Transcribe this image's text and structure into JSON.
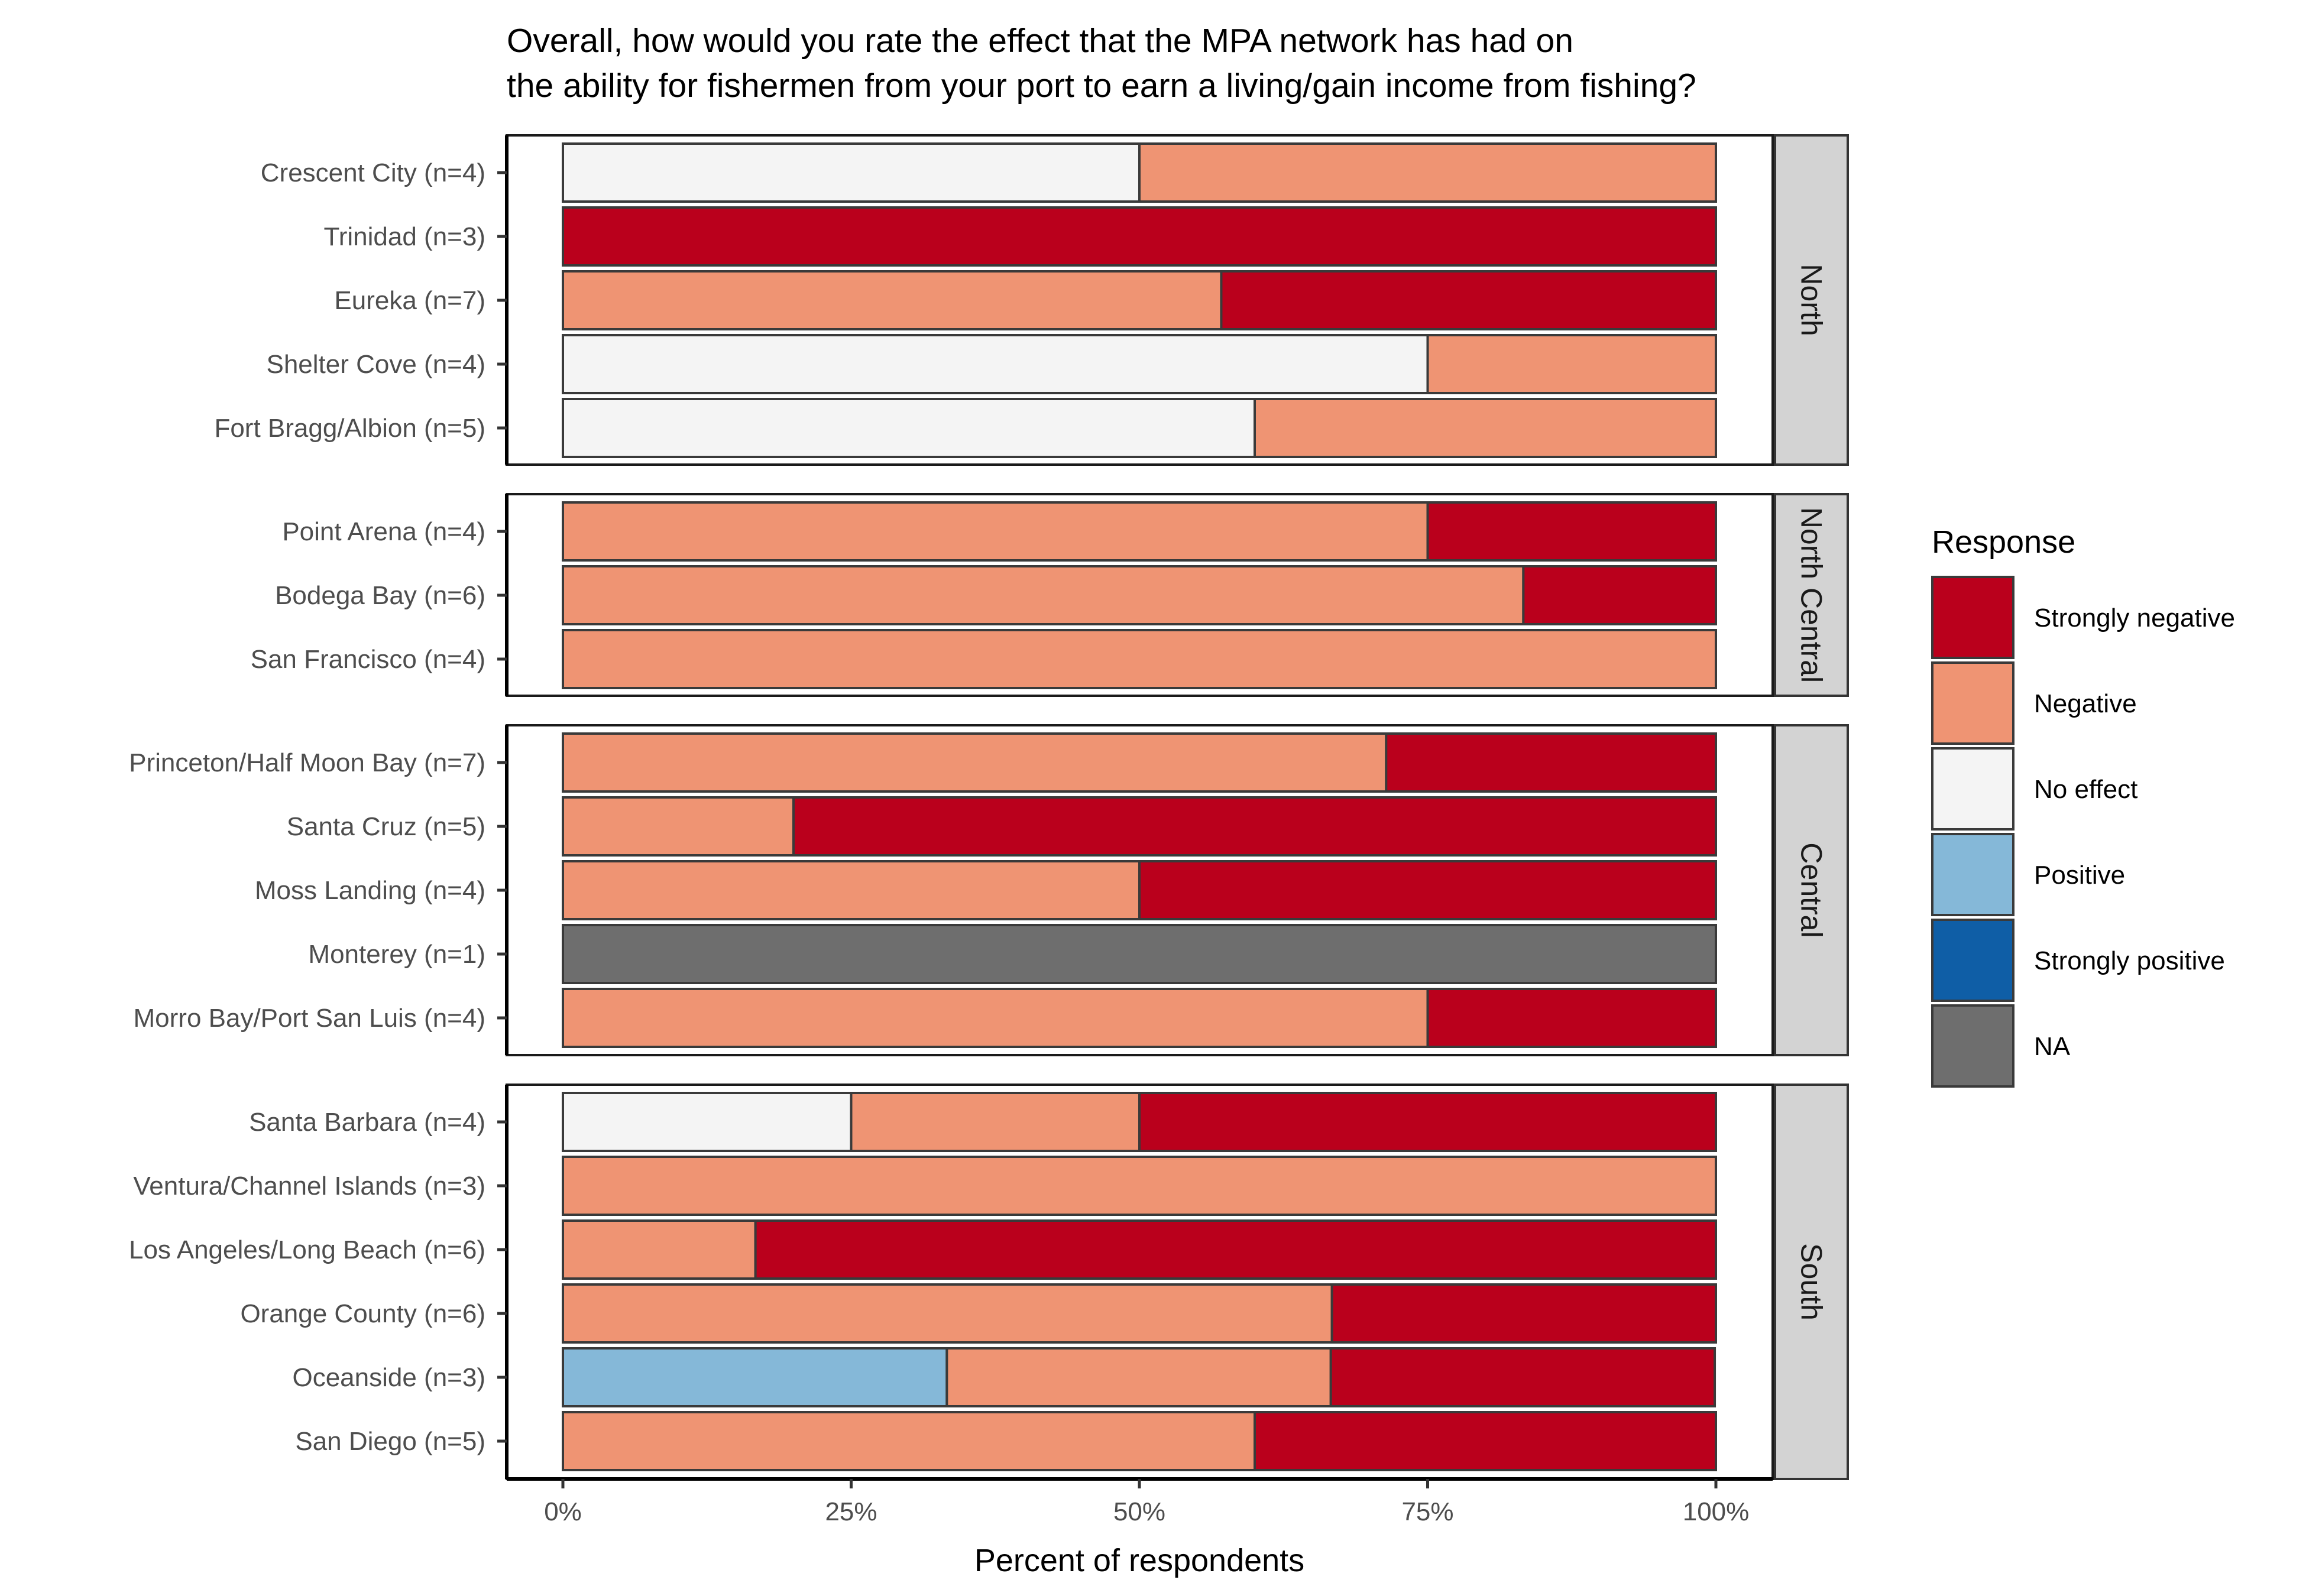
{
  "chart_data": {
    "type": "bar",
    "orientation": "horizontal",
    "stacked": "percent",
    "title": "Overall, how would you rate the effect that the MPA network has had on\nthe ability for fishermen from your port to earn a living/gain income from fishing?",
    "xlabel": "Percent of respondents",
    "ylabel": "",
    "xlim": [
      0,
      100
    ],
    "xticks": [
      "0%",
      "25%",
      "50%",
      "75%",
      "100%"
    ],
    "grid": false,
    "legend": {
      "title": "Response",
      "position": "right",
      "entries": [
        {
          "label": "Strongly negative",
          "color": "#ba001c"
        },
        {
          "label": "Negative",
          "color": "#ef9473"
        },
        {
          "label": "No effect",
          "color": "#f4f4f4"
        },
        {
          "label": "Positive",
          "color": "#85b8d8"
        },
        {
          "label": "Strongly positive",
          "color": "#0f5ea6"
        },
        {
          "label": "NA",
          "color": "#6e6e6e"
        }
      ]
    },
    "panels": [
      {
        "region": "North",
        "ports": [
          {
            "label": "Crescent City (n=4)",
            "segments": [
              {
                "response": "No effect",
                "value": 50
              },
              {
                "response": "Negative",
                "value": 50
              }
            ]
          },
          {
            "label": "Trinidad (n=3)",
            "segments": [
              {
                "response": "Strongly negative",
                "value": 100
              }
            ]
          },
          {
            "label": "Eureka (n=7)",
            "segments": [
              {
                "response": "Negative",
                "value": 57.1
              },
              {
                "response": "Strongly negative",
                "value": 42.9
              }
            ]
          },
          {
            "label": "Shelter Cove (n=4)",
            "segments": [
              {
                "response": "No effect",
                "value": 75
              },
              {
                "response": "Negative",
                "value": 25
              }
            ]
          },
          {
            "label": "Fort Bragg/Albion (n=5)",
            "segments": [
              {
                "response": "No effect",
                "value": 60
              },
              {
                "response": "Negative",
                "value": 40
              }
            ]
          }
        ]
      },
      {
        "region": "North Central",
        "ports": [
          {
            "label": "Point Arena (n=4)",
            "segments": [
              {
                "response": "Negative",
                "value": 75
              },
              {
                "response": "Strongly negative",
                "value": 25
              }
            ]
          },
          {
            "label": "Bodega Bay (n=6)",
            "segments": [
              {
                "response": "Negative",
                "value": 83.3
              },
              {
                "response": "Strongly negative",
                "value": 16.7
              }
            ]
          },
          {
            "label": "San Francisco (n=4)",
            "segments": [
              {
                "response": "Negative",
                "value": 100
              }
            ]
          }
        ]
      },
      {
        "region": "Central",
        "ports": [
          {
            "label": "Princeton/Half Moon Bay (n=7)",
            "segments": [
              {
                "response": "Negative",
                "value": 71.4
              },
              {
                "response": "Strongly negative",
                "value": 28.6
              }
            ]
          },
          {
            "label": "Santa Cruz (n=5)",
            "segments": [
              {
                "response": "Negative",
                "value": 20
              },
              {
                "response": "Strongly negative",
                "value": 80
              }
            ]
          },
          {
            "label": "Moss Landing (n=4)",
            "segments": [
              {
                "response": "Negative",
                "value": 50
              },
              {
                "response": "Strongly negative",
                "value": 50
              }
            ]
          },
          {
            "label": "Monterey (n=1)",
            "segments": [
              {
                "response": "NA",
                "value": 100
              }
            ]
          },
          {
            "label": "Morro Bay/Port San Luis (n=4)",
            "segments": [
              {
                "response": "Negative",
                "value": 75
              },
              {
                "response": "Strongly negative",
                "value": 25
              }
            ]
          }
        ]
      },
      {
        "region": "South",
        "ports": [
          {
            "label": "Santa Barbara (n=4)",
            "segments": [
              {
                "response": "No effect",
                "value": 25
              },
              {
                "response": "Negative",
                "value": 25
              },
              {
                "response": "Strongly negative",
                "value": 50
              }
            ]
          },
          {
            "label": "Ventura/Channel Islands (n=3)",
            "segments": [
              {
                "response": "Negative",
                "value": 100
              }
            ]
          },
          {
            "label": "Los Angeles/Long Beach (n=6)",
            "segments": [
              {
                "response": "Negative",
                "value": 16.7
              },
              {
                "response": "Strongly negative",
                "value": 83.3
              }
            ]
          },
          {
            "label": "Orange County (n=6)",
            "segments": [
              {
                "response": "Negative",
                "value": 66.7
              },
              {
                "response": "Strongly negative",
                "value": 33.3
              }
            ]
          },
          {
            "label": "Oceanside (n=3)",
            "segments": [
              {
                "response": "Positive",
                "value": 33.3
              },
              {
                "response": "Negative",
                "value": 33.3
              },
              {
                "response": "Strongly negative",
                "value": 33.3
              }
            ]
          },
          {
            "label": "San Diego (n=5)",
            "segments": [
              {
                "response": "Negative",
                "value": 60
              },
              {
                "response": "Strongly negative",
                "value": 40
              }
            ]
          }
        ]
      }
    ]
  }
}
